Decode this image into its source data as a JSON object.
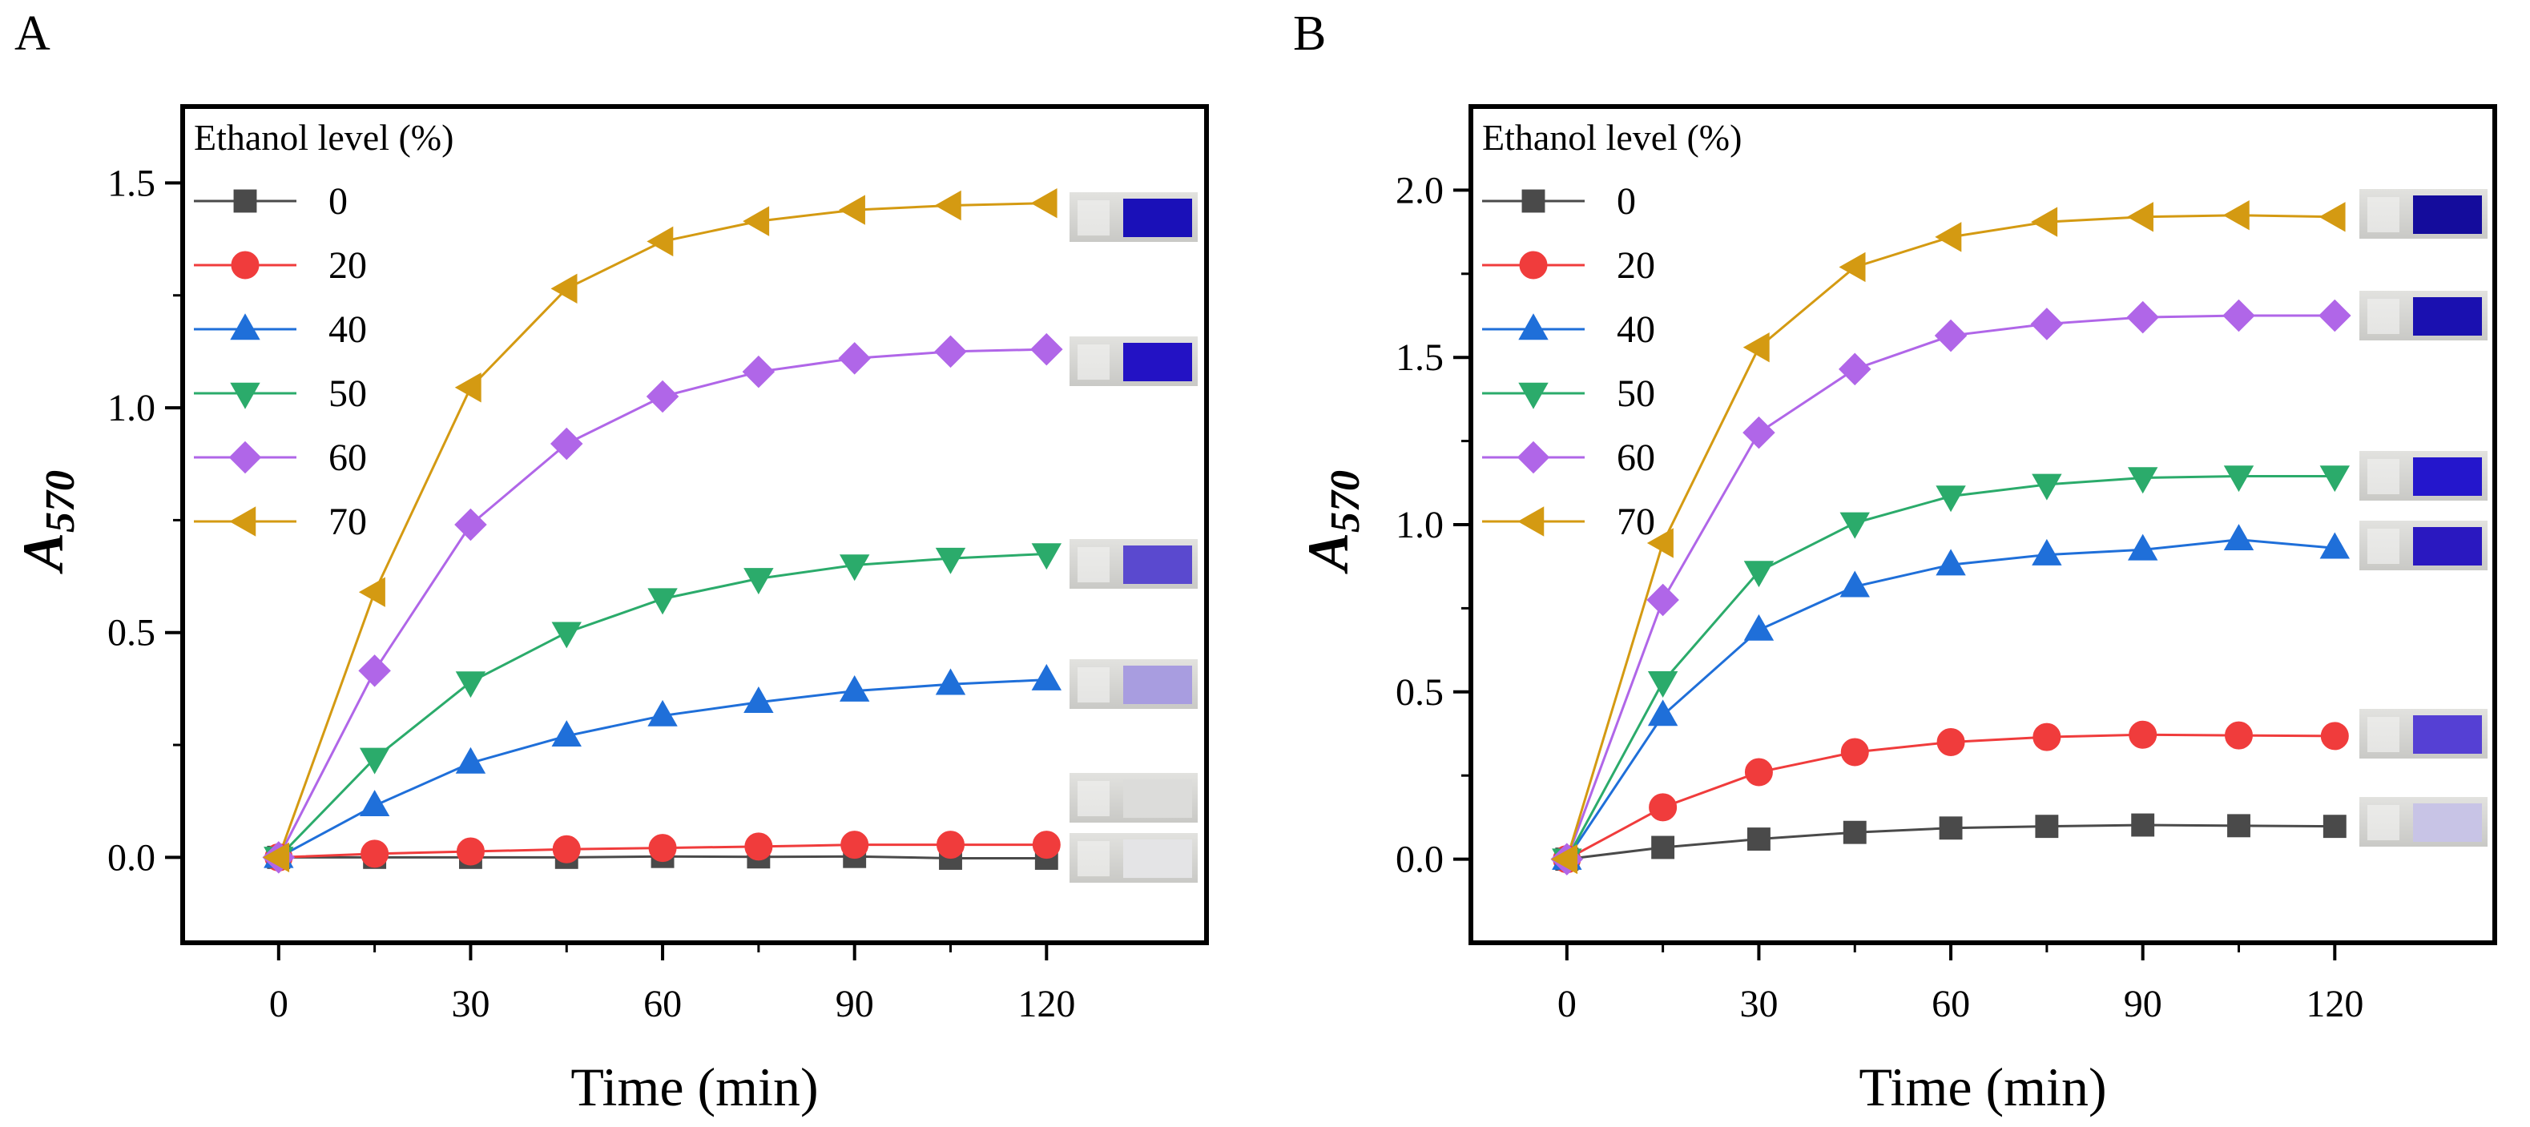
{
  "chart_data": [
    {
      "panel": "A",
      "type": "line",
      "xlabel": "Time (min)",
      "ylabel": "A",
      "ylabel_sub": "570",
      "x": [
        0,
        15,
        30,
        45,
        60,
        75,
        90,
        105,
        120
      ],
      "xlim": [
        -15,
        145
      ],
      "ylim": [
        -0.19,
        1.67
      ],
      "xticks": [
        0,
        30,
        60,
        90,
        120
      ],
      "xtick_labels": [
        "0",
        "30",
        "60",
        "90",
        "120"
      ],
      "yticks": [
        0,
        0.5,
        1.0,
        1.5
      ],
      "ytick_labels": [
        "0.0",
        "0.5",
        "1.0",
        "1.5"
      ],
      "legend_title": "Ethanol level (%)",
      "legend_position": "top-left",
      "series": [
        {
          "name": "0",
          "marker": "square",
          "color": "#4a4a4a",
          "values": [
            0,
            0.0,
            0.0,
            0.0,
            0.002,
            0.001,
            0.002,
            -0.002,
            -0.002
          ]
        },
        {
          "name": "20",
          "marker": "circle",
          "color": "#f03c3c",
          "values": [
            0,
            0.008,
            0.013,
            0.018,
            0.021,
            0.024,
            0.028,
            0.028,
            0.028
          ]
        },
        {
          "name": "40",
          "marker": "triangle-up",
          "color": "#1f6fd9",
          "values": [
            0,
            0.115,
            0.21,
            0.27,
            0.315,
            0.345,
            0.37,
            0.385,
            0.395
          ]
        },
        {
          "name": "50",
          "marker": "triangle-down",
          "color": "#2bab6b",
          "values": [
            0,
            0.22,
            0.39,
            0.5,
            0.575,
            0.62,
            0.65,
            0.665,
            0.675
          ]
        },
        {
          "name": "60",
          "marker": "diamond",
          "color": "#b066e8",
          "values": [
            0,
            0.415,
            0.74,
            0.92,
            1.025,
            1.08,
            1.11,
            1.125,
            1.13
          ]
        },
        {
          "name": "70",
          "marker": "triangle-left",
          "color": "#d49a12",
          "values": [
            0,
            0.59,
            1.045,
            1.265,
            1.37,
            1.415,
            1.44,
            1.45,
            1.455
          ]
        }
      ]
    },
    {
      "panel": "B",
      "type": "line",
      "xlabel": "Time (min)",
      "ylabel": "A",
      "ylabel_sub": "570",
      "x": [
        0,
        15,
        30,
        45,
        60,
        75,
        90,
        105,
        120
      ],
      "xlim": [
        -15,
        145
      ],
      "ylim": [
        -0.25,
        2.25
      ],
      "xticks": [
        0,
        30,
        60,
        90,
        120
      ],
      "xtick_labels": [
        "0",
        "30",
        "60",
        "90",
        "120"
      ],
      "yticks": [
        0,
        0.5,
        1.0,
        1.5,
        2.0
      ],
      "ytick_labels": [
        "0.0",
        "0.5",
        "1.0",
        "1.5",
        "2.0"
      ],
      "legend_title": "Ethanol level (%)",
      "legend_position": "top-left",
      "series": [
        {
          "name": "0",
          "marker": "square",
          "color": "#4a4a4a",
          "values": [
            0,
            0.035,
            0.06,
            0.08,
            0.093,
            0.098,
            0.102,
            0.1,
            0.098
          ]
        },
        {
          "name": "20",
          "marker": "circle",
          "color": "#f03c3c",
          "values": [
            0,
            0.155,
            0.26,
            0.32,
            0.35,
            0.365,
            0.372,
            0.37,
            0.368
          ]
        },
        {
          "name": "40",
          "marker": "triangle-up",
          "color": "#1f6fd9",
          "values": [
            0,
            0.43,
            0.685,
            0.815,
            0.88,
            0.91,
            0.925,
            0.955,
            0.93
          ]
        },
        {
          "name": "50",
          "marker": "triangle-down",
          "color": "#2bab6b",
          "values": [
            0,
            0.53,
            0.86,
            1.005,
            1.085,
            1.12,
            1.14,
            1.145,
            1.145
          ]
        },
        {
          "name": "60",
          "marker": "diamond",
          "color": "#b066e8",
          "values": [
            0,
            0.775,
            1.275,
            1.465,
            1.565,
            1.6,
            1.62,
            1.625,
            1.625
          ]
        },
        {
          "name": "70",
          "marker": "triangle-left",
          "color": "#d49a12",
          "values": [
            0,
            0.945,
            1.53,
            1.77,
            1.86,
            1.905,
            1.92,
            1.925,
            1.92
          ]
        }
      ]
    }
  ]
}
